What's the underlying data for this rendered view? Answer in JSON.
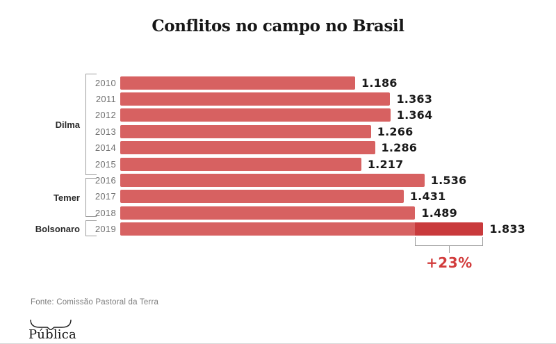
{
  "title": "Conflitos no campo no Brasil",
  "source": "Fonte: Comissão Pastoral da Terra",
  "logo": {
    "text": "Pública"
  },
  "chart_data": {
    "type": "bar",
    "orientation": "horizontal",
    "title": "Conflitos no campo no Brasil",
    "categories": [
      "2010",
      "2011",
      "2012",
      "2013",
      "2014",
      "2015",
      "2016",
      "2017",
      "2018",
      "2019"
    ],
    "values": [
      1186,
      1363,
      1364,
      1266,
      1286,
      1217,
      1536,
      1431,
      1489,
      1833
    ],
    "value_labels": [
      "1.186",
      "1.363",
      "1.364",
      "1.266",
      "1.286",
      "1.217",
      "1.536",
      "1.431",
      "1.489",
      "1.833"
    ],
    "xlim": [
      0,
      2000
    ],
    "grid": false,
    "groups": [
      {
        "label": "Dilma",
        "from": "2010",
        "to": "2015"
      },
      {
        "label": "Temer",
        "from": "2016",
        "to": "2018"
      },
      {
        "label": "Bolsonaro",
        "from": "2019",
        "to": "2019"
      }
    ],
    "highlight": {
      "year": "2019",
      "segment_start": 1489,
      "segment_end": 1833,
      "annotation": "+23%"
    },
    "colors": {
      "bar": "#d76161",
      "highlight": "#c93a3c",
      "annotation_text": "#d23c3c",
      "bracket_line": "#9c9c9c"
    }
  }
}
